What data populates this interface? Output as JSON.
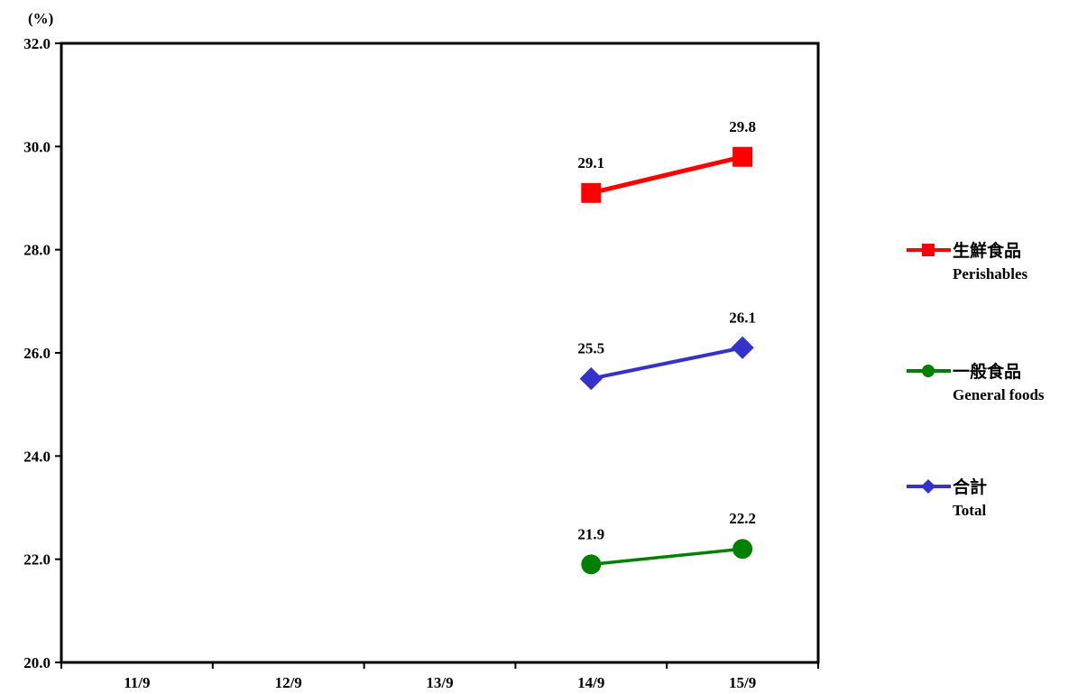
{
  "chart_data": {
    "type": "line",
    "unit_label": "(%)",
    "ylim": [
      20.0,
      32.0
    ],
    "y_ticks": [
      "20.0",
      "22.0",
      "24.0",
      "26.0",
      "28.0",
      "30.0",
      "32.0"
    ],
    "categories": [
      "11/9",
      "12/9",
      "13/9",
      "14/9",
      "15/9"
    ],
    "grid": false,
    "legend_position": "right",
    "series": [
      {
        "name": "生鮮食品",
        "name_en": "Perishables",
        "color": "#ff0000",
        "marker": "square",
        "values": [
          null,
          null,
          null,
          29.1,
          29.8
        ],
        "labels": [
          "",
          "",
          "",
          "29.1",
          "29.8"
        ]
      },
      {
        "name": "一般食品",
        "name_en": "General foods",
        "color": "#008000",
        "marker": "circle",
        "values": [
          null,
          null,
          null,
          21.9,
          22.2
        ],
        "labels": [
          "",
          "",
          "",
          "21.9",
          "22.2"
        ]
      },
      {
        "name": "合計",
        "name_en": "Total",
        "color": "#3333cc",
        "marker": "diamond",
        "values": [
          null,
          null,
          null,
          25.5,
          26.1
        ],
        "labels": [
          "",
          "",
          "",
          "25.5",
          "26.1"
        ]
      }
    ]
  }
}
